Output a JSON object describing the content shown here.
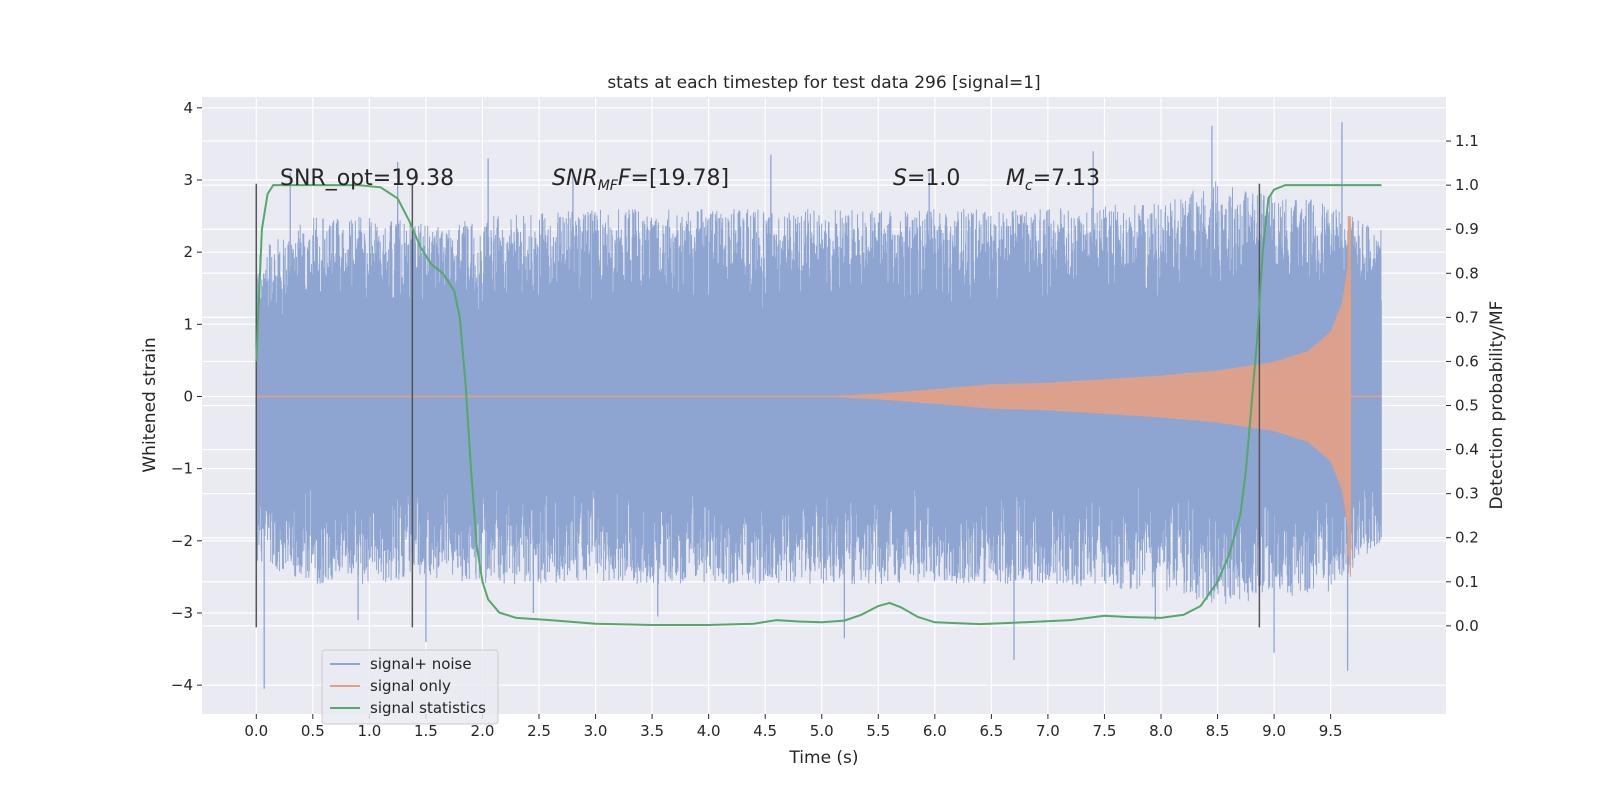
{
  "chart_data": {
    "type": "line",
    "title": "stats at each timestep for test data 296 [signal=1]",
    "xlabel": "Time (s)",
    "ylabel": "Whitened strain",
    "y2label": "Detection probability/MF",
    "xlim": [
      -0.48,
      10.52
    ],
    "ylim": [
      -4.4,
      4.15
    ],
    "y2lim": [
      -0.2,
      1.2
    ],
    "xticks": [
      0.0,
      0.5,
      1.0,
      1.5,
      2.0,
      2.5,
      3.0,
      3.5,
      4.0,
      4.5,
      5.0,
      5.5,
      6.0,
      6.5,
      7.0,
      7.5,
      8.0,
      8.5,
      9.0,
      9.5
    ],
    "yticks": [
      -4,
      -3,
      -2,
      -1,
      0,
      1,
      2,
      3,
      4
    ],
    "y2ticks": [
      0.0,
      0.1,
      0.2,
      0.3,
      0.4,
      0.5,
      0.6,
      0.7,
      0.8,
      0.9,
      1.0,
      1.1
    ],
    "grid": true,
    "legend_position": "lower-left",
    "annotations": {
      "snr_opt": "SNR_opt=19.38",
      "snr_mf_main": "SNR",
      "snr_mf_sub": "MF",
      "snr_mf_rest": "=[19.78]",
      "s_main": "S",
      "s_rest": "=1.0",
      "mc_main": "M",
      "mc_sub": "c",
      "mc_rest": "=7.13"
    },
    "vertical_markers_x": [
      0.0,
      1.38,
      8.87
    ],
    "series": [
      {
        "name": "signal+ noise",
        "color": "#8fa5d1",
        "envelope_upper": [
          [
            0.0,
            2.0
          ],
          [
            0.5,
            2.5
          ],
          [
            1.0,
            2.5
          ],
          [
            1.5,
            2.4
          ],
          [
            2.0,
            2.5
          ],
          [
            3.0,
            2.6
          ],
          [
            4.0,
            2.6
          ],
          [
            5.0,
            2.6
          ],
          [
            6.0,
            2.6
          ],
          [
            7.0,
            2.6
          ],
          [
            8.0,
            2.7
          ],
          [
            8.5,
            3.0
          ],
          [
            9.0,
            2.8
          ],
          [
            9.5,
            2.7
          ],
          [
            9.95,
            2.3
          ]
        ],
        "envelope_lower": [
          [
            0.0,
            -2.3
          ],
          [
            0.5,
            -2.6
          ],
          [
            1.0,
            -2.6
          ],
          [
            1.5,
            -2.5
          ],
          [
            2.0,
            -2.6
          ],
          [
            3.0,
            -2.6
          ],
          [
            4.0,
            -2.6
          ],
          [
            5.0,
            -2.6
          ],
          [
            6.0,
            -2.6
          ],
          [
            7.0,
            -2.6
          ],
          [
            8.0,
            -2.7
          ],
          [
            8.5,
            -2.9
          ],
          [
            9.0,
            -2.8
          ],
          [
            9.5,
            -2.7
          ],
          [
            9.95,
            -2.0
          ]
        ],
        "spikes": [
          [
            0.07,
            -4.05
          ],
          [
            0.3,
            3.1
          ],
          [
            0.9,
            -3.1
          ],
          [
            1.25,
            3.25
          ],
          [
            1.5,
            -3.4
          ],
          [
            2.05,
            3.3
          ],
          [
            2.45,
            -3.0
          ],
          [
            2.8,
            3.1
          ],
          [
            3.55,
            -3.05
          ],
          [
            4.55,
            3.35
          ],
          [
            5.2,
            -3.35
          ],
          [
            5.95,
            3.1
          ],
          [
            6.7,
            -3.65
          ],
          [
            7.4,
            3.4
          ],
          [
            7.95,
            -3.1
          ],
          [
            8.45,
            3.75
          ],
          [
            9.0,
            -3.55
          ],
          [
            9.6,
            3.8
          ],
          [
            9.65,
            -3.8
          ]
        ]
      },
      {
        "name": "signal only",
        "color": "#e3a184",
        "chirp_amplitude": [
          [
            0.0,
            0.0
          ],
          [
            5.0,
            0.0
          ],
          [
            5.5,
            0.04
          ],
          [
            6.0,
            0.1
          ],
          [
            6.5,
            0.17
          ],
          [
            7.0,
            0.19
          ],
          [
            7.5,
            0.24
          ],
          [
            8.0,
            0.29
          ],
          [
            8.5,
            0.36
          ],
          [
            9.0,
            0.48
          ],
          [
            9.3,
            0.63
          ],
          [
            9.5,
            0.9
          ],
          [
            9.6,
            1.3
          ],
          [
            9.65,
            1.8
          ],
          [
            9.67,
            2.5
          ]
        ],
        "merger_end_x": 9.68
      },
      {
        "name": "signal statistics",
        "color": "#55a868",
        "axis": "y2",
        "points": [
          [
            0.0,
            0.6
          ],
          [
            0.05,
            0.9
          ],
          [
            0.1,
            0.98
          ],
          [
            0.15,
            1.0
          ],
          [
            0.3,
            1.0
          ],
          [
            0.6,
            1.0
          ],
          [
            0.9,
            1.0
          ],
          [
            1.1,
            0.995
          ],
          [
            1.25,
            0.97
          ],
          [
            1.35,
            0.92
          ],
          [
            1.45,
            0.86
          ],
          [
            1.55,
            0.82
          ],
          [
            1.65,
            0.8
          ],
          [
            1.75,
            0.76
          ],
          [
            1.8,
            0.7
          ],
          [
            1.85,
            0.55
          ],
          [
            1.9,
            0.35
          ],
          [
            1.95,
            0.18
          ],
          [
            2.0,
            0.1
          ],
          [
            2.05,
            0.06
          ],
          [
            2.15,
            0.03
          ],
          [
            2.3,
            0.018
          ],
          [
            2.6,
            0.013
          ],
          [
            3.0,
            0.005
          ],
          [
            3.5,
            0.002
          ],
          [
            4.0,
            0.002
          ],
          [
            4.4,
            0.005
          ],
          [
            4.6,
            0.013
          ],
          [
            4.8,
            0.01
          ],
          [
            5.0,
            0.008
          ],
          [
            5.2,
            0.012
          ],
          [
            5.35,
            0.025
          ],
          [
            5.5,
            0.045
          ],
          [
            5.6,
            0.052
          ],
          [
            5.7,
            0.042
          ],
          [
            5.85,
            0.02
          ],
          [
            6.0,
            0.008
          ],
          [
            6.4,
            0.004
          ],
          [
            6.8,
            0.008
          ],
          [
            7.2,
            0.013
          ],
          [
            7.5,
            0.023
          ],
          [
            7.7,
            0.02
          ],
          [
            8.0,
            0.018
          ],
          [
            8.2,
            0.025
          ],
          [
            8.35,
            0.045
          ],
          [
            8.5,
            0.1
          ],
          [
            8.6,
            0.16
          ],
          [
            8.7,
            0.25
          ],
          [
            8.75,
            0.35
          ],
          [
            8.8,
            0.5
          ],
          [
            8.85,
            0.65
          ],
          [
            8.9,
            0.85
          ],
          [
            8.95,
            0.97
          ],
          [
            9.0,
            0.99
          ],
          [
            9.1,
            1.0
          ],
          [
            9.5,
            1.0
          ],
          [
            9.95,
            1.0
          ]
        ]
      }
    ]
  }
}
